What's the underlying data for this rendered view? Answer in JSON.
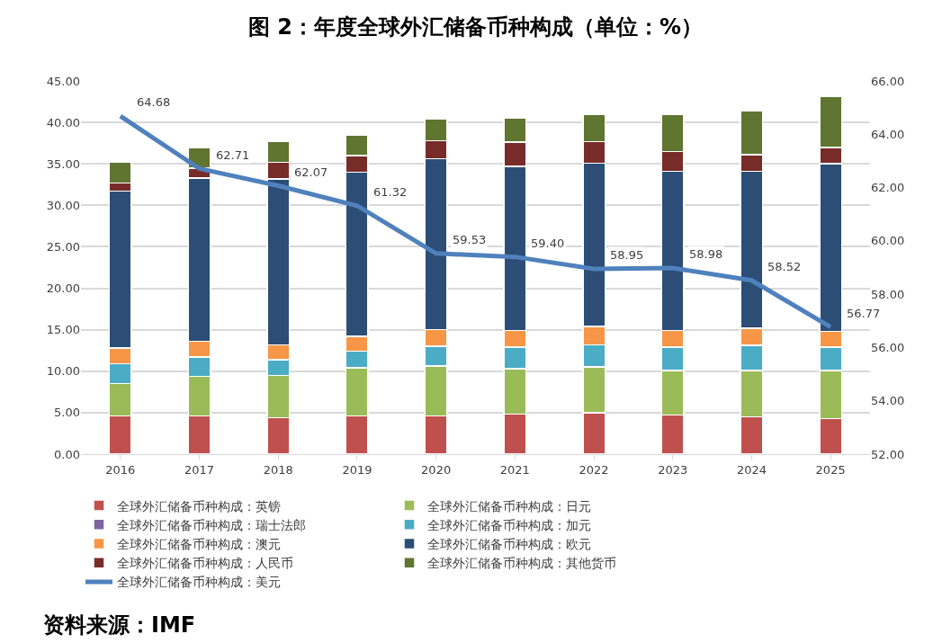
{
  "chart_data": {
    "type": "bar",
    "title": "图 2：年度全球外汇储备币种构成（单位：%）",
    "categories": [
      "2016",
      "2017",
      "2018",
      "2019",
      "2020",
      "2021",
      "2022",
      "2023",
      "2024",
      "2025"
    ],
    "stacked": true,
    "series": [
      {
        "name": "全球外汇储备币种构成：英镑",
        "color": "#c0504d",
        "values": [
          4.6,
          4.6,
          4.4,
          4.6,
          4.6,
          4.8,
          5.0,
          4.7,
          4.5,
          4.3
        ]
      },
      {
        "name": "全球外汇储备币种构成：日元",
        "color": "#9bbb59",
        "values": [
          3.9,
          4.8,
          5.1,
          5.8,
          6.0,
          5.5,
          5.5,
          5.4,
          5.6,
          5.8
        ]
      },
      {
        "name": "全球外汇储备币种构成：瑞士法郎",
        "color": "#8064a2",
        "values": [
          null,
          null,
          null,
          null,
          null,
          null,
          null,
          null,
          null,
          null
        ]
      },
      {
        "name": "全球外汇储备币种构成：加元",
        "color": "#4bacc6",
        "values": [
          2.4,
          2.3,
          1.9,
          2.0,
          2.4,
          2.6,
          2.7,
          2.8,
          3.0,
          2.8
        ]
      },
      {
        "name": "全球外汇储备币种构成：澳元",
        "color": "#f79646",
        "values": [
          1.9,
          1.9,
          1.8,
          1.8,
          2.0,
          2.0,
          2.2,
          2.0,
          2.1,
          1.9
        ]
      },
      {
        "name": "全球外汇储备币种构成：欧元",
        "color": "#2c4d75",
        "values": [
          18.9,
          19.7,
          20.0,
          19.8,
          20.6,
          19.8,
          19.7,
          19.2,
          18.9,
          20.2
        ]
      },
      {
        "name": "全球外汇储备币种构成：人民币",
        "color": "#772c2a",
        "values": [
          1.0,
          1.2,
          2.0,
          2.0,
          2.2,
          2.9,
          2.6,
          2.4,
          2.0,
          2.0
        ]
      },
      {
        "name": "全球外汇储备币种构成：其他货币",
        "color": "#5f7530",
        "values": [
          2.5,
          2.5,
          2.5,
          2.5,
          2.6,
          2.9,
          3.3,
          4.5,
          5.3,
          6.1
        ]
      },
      {
        "name": "全球外汇储备币种构成：美元",
        "type": "line",
        "axis": "y2",
        "color": "#4f81bd",
        "values": [
          64.68,
          62.71,
          62.07,
          61.32,
          59.53,
          59.4,
          58.95,
          58.98,
          58.52,
          56.77
        ],
        "value_labels": [
          "64.68",
          "62.71",
          "62.07",
          "61.32",
          "59.53",
          "59.40",
          "58.95",
          "58.98",
          "58.52",
          "56.77"
        ],
        "marker": "none",
        "line_style": "solid"
      }
    ],
    "ylim": [
      0,
      45
    ],
    "yticks": [
      {
        "value": 0,
        "label": "0.00"
      },
      {
        "value": 5,
        "label": "5.00"
      },
      {
        "value": 10,
        "label": "10.00"
      },
      {
        "value": 15,
        "label": "15.00"
      },
      {
        "value": 20,
        "label": "20.00"
      },
      {
        "value": 25,
        "label": "25.00"
      },
      {
        "value": 30,
        "label": "30.00"
      },
      {
        "value": 35,
        "label": "35.00"
      },
      {
        "value": 40,
        "label": "40.00"
      },
      {
        "value": 45,
        "label": "45.00"
      }
    ],
    "y2lim": [
      52,
      66
    ],
    "y2ticks": [
      {
        "value": 52,
        "label": "52.00"
      },
      {
        "value": 54,
        "label": "54.00"
      },
      {
        "value": 56,
        "label": "56.00"
      },
      {
        "value": 58,
        "label": "58.00"
      },
      {
        "value": 60,
        "label": "60.00"
      },
      {
        "value": 62,
        "label": "62.00"
      },
      {
        "value": 64,
        "label": "64.00"
      },
      {
        "value": 66,
        "label": "66.00"
      }
    ],
    "grid": "y",
    "legend": "bottom",
    "annotations": [
      "资料来源：IMF"
    ]
  }
}
